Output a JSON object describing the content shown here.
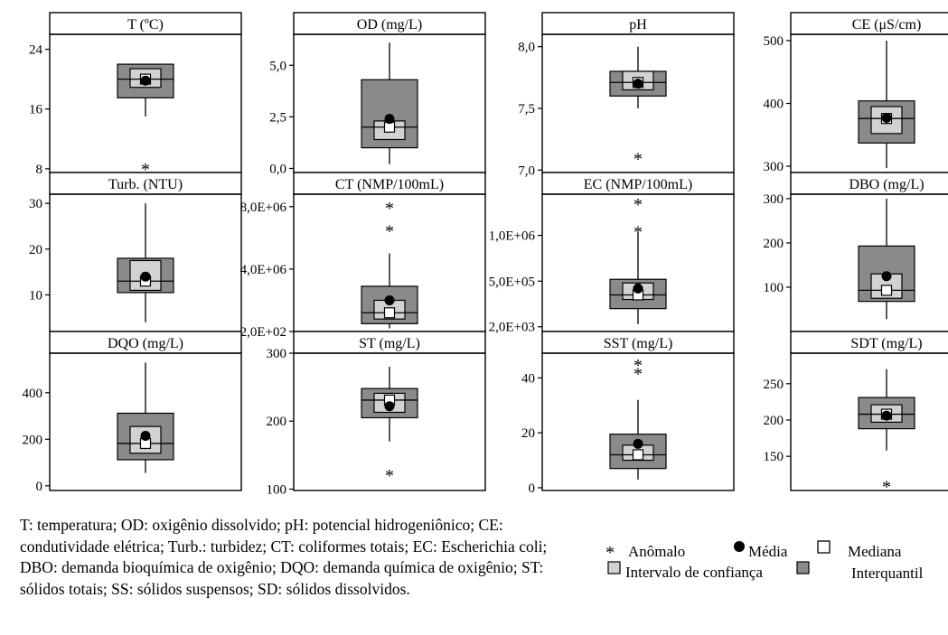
{
  "caption": "T: temperatura; OD: oxigênio dissolvido; pH: potencial hidrogeniônico; CE: condutividade elétrica; Turb.: turbidez; CT: coliformes totais; EC: Escherichia coli; DBO: demanda bioquímica de oxigênio; DQO: demanda química de oxigênio; ST: sólidos totais; SS: sólidos suspensos; SD: sólidos dissolvidos.",
  "legend": {
    "outlier": "Anômalo",
    "mean": "Média",
    "median": "Mediana",
    "ci": "Intervalo de confiança",
    "iqr": "Interquantil"
  },
  "colors": {
    "iqr": "#8a8a8a",
    "ci": "#d2d2d2",
    "line": "#000000",
    "background": "#ffffff"
  },
  "chart_data": [
    {
      "type": "box",
      "title": "T (ºC)",
      "ylim": [
        7.5,
        26
      ],
      "ticks": [
        8,
        16,
        24
      ],
      "tick_labels": [
        "8",
        "16",
        "24"
      ],
      "whisker_low": 15,
      "q1": 17.5,
      "median": 20,
      "q3": 22,
      "ci": [
        18.9,
        21.4
      ],
      "mean": 19.8,
      "outliers": [
        8.1
      ]
    },
    {
      "type": "box",
      "title": "OD (mg/L)",
      "ylim": [
        -0.2,
        6.5
      ],
      "ticks": [
        0,
        2.5,
        5
      ],
      "tick_labels": [
        "0,0",
        "2,5",
        "5,0"
      ],
      "whisker_low": 0.2,
      "q1": 1.0,
      "median": 2.0,
      "q3": 4.3,
      "ci": [
        1.4,
        2.3
      ],
      "mean": 2.4,
      "whisker_high": 6.1,
      "outliers": []
    },
    {
      "type": "box",
      "title": "pH",
      "ylim": [
        6.98,
        8.1
      ],
      "ticks": [
        7,
        7.5,
        8
      ],
      "tick_labels": [
        "7,0",
        "7,5",
        "8,0"
      ],
      "whisker_low": 7.5,
      "q1": 7.6,
      "median": 7.71,
      "q3": 7.8,
      "ci": [
        7.65,
        7.8
      ],
      "mean": 7.7,
      "whisker_high": 8.0,
      "outliers": [
        7.1
      ]
    },
    {
      "type": "box",
      "title": "CE (μS/cm)",
      "ylim": [
        290,
        510
      ],
      "ticks": [
        300,
        400,
        500
      ],
      "tick_labels": [
        "300",
        "400",
        "500"
      ],
      "whisker_low": 297,
      "q1": 337,
      "median": 376,
      "q3": 404,
      "ci": [
        352,
        395
      ],
      "mean": 377,
      "whisker_high": 500,
      "outliers": []
    },
    {
      "type": "box",
      "title": "Turb. (NTU)",
      "ylim": [
        2,
        32
      ],
      "ticks": [
        10,
        20,
        30
      ],
      "tick_labels": [
        "10",
        "20",
        "30"
      ],
      "whisker_low": 4,
      "q1": 10.5,
      "median": 13,
      "q3": 18,
      "ci": [
        11,
        17.5
      ],
      "mean": 14,
      "whisker_high": 30,
      "outliers": []
    },
    {
      "type": "box",
      "title": "CT (NMP/100mL)",
      "ylim": [
        0,
        8800000
      ],
      "ticks": [
        200,
        4000000,
        8000000
      ],
      "tick_labels": [
        "2,0E+02",
        "4,0E+06",
        "8,0E+06"
      ],
      "whisker_low": 200000,
      "q1": 500000,
      "median": 1200000,
      "q3": 2900000,
      "ci": [
        800000,
        2000000
      ],
      "mean": 2000000,
      "whisker_high": 5000000,
      "outliers": [
        6500000,
        8000000
      ]
    },
    {
      "type": "box",
      "title": "EC (NMP/100mL)",
      "ylim": [
        -50000,
        1450000
      ],
      "ticks": [
        2000,
        500000,
        1000000
      ],
      "tick_labels": [
        "2,0E+03",
        "5,0E+05",
        "1,0E+06"
      ],
      "whisker_low": 30000,
      "q1": 200000,
      "median": 350000,
      "q3": 520000,
      "ci": [
        300000,
        480000
      ],
      "mean": 420000,
      "whisker_high": 1030000,
      "outliers": [
        1050000,
        1350000
      ]
    },
    {
      "type": "box",
      "title": "DBO (mg/L)",
      "ylim": [
        0,
        310
      ],
      "ticks": [
        100,
        200,
        300
      ],
      "tick_labels": [
        "100",
        "200",
        "300"
      ],
      "whisker_low": 28,
      "q1": 68,
      "median": 93,
      "q3": 193,
      "ci": [
        75,
        130
      ],
      "mean": 125,
      "whisker_high": 300,
      "outliers": []
    },
    {
      "type": "box",
      "title": "DQO (mg/L)",
      "ylim": [
        -20,
        570
      ],
      "ticks": [
        0,
        200,
        400
      ],
      "tick_labels": [
        "0",
        "200",
        "400"
      ],
      "whisker_low": 55,
      "q1": 112,
      "median": 182,
      "q3": 312,
      "ci": [
        140,
        255
      ],
      "mean": 215,
      "whisker_high": 530,
      "outliers": []
    },
    {
      "type": "box",
      "title": "ST (mg/L)",
      "ylim": [
        98,
        300
      ],
      "ticks": [
        100,
        200,
        300
      ],
      "tick_labels": [
        "100",
        "200",
        "300"
      ],
      "whisker_low": 170,
      "q1": 205,
      "median": 231,
      "q3": 248,
      "ci": [
        213,
        241
      ],
      "mean": 222,
      "whisker_high": 280,
      "outliers": [
        122
      ]
    },
    {
      "type": "box",
      "title": "SST (mg/L)",
      "ylim": [
        -1,
        49
      ],
      "ticks": [
        0,
        20,
        40
      ],
      "tick_labels": [
        "0",
        "20",
        "40"
      ],
      "whisker_low": 3,
      "q1": 7,
      "median": 12,
      "q3": 19.5,
      "ci": [
        10,
        15.5
      ],
      "mean": 16,
      "whisker_high": 32,
      "outliers": [
        42,
        45
      ]
    },
    {
      "type": "box",
      "title": "SDT (mg/L)",
      "ylim": [
        103,
        292
      ],
      "ticks": [
        150,
        200,
        250
      ],
      "tick_labels": [
        "150",
        "200",
        "250"
      ],
      "whisker_low": 158,
      "q1": 188,
      "median": 208,
      "q3": 231,
      "ci": [
        197,
        221
      ],
      "mean": 206,
      "whisker_high": 270,
      "outliers": [
        110
      ]
    }
  ]
}
